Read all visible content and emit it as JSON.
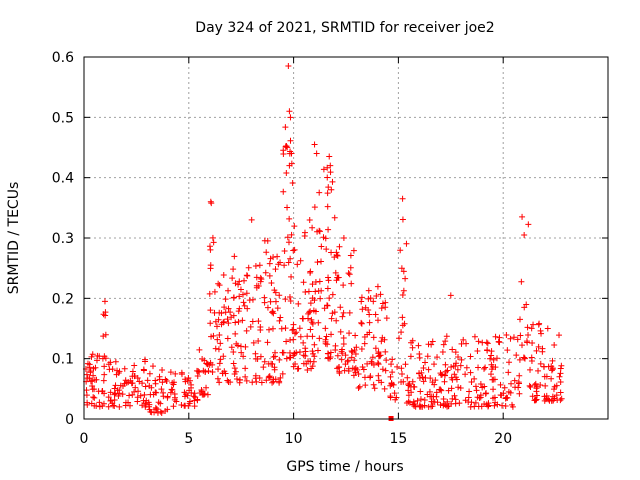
{
  "chart_data": {
    "type": "scatter",
    "title": "Day 324 of 2021, SRMTID for receiver joe2",
    "xlabel": "GPS time / hours",
    "ylabel": "SRMTID / TECUs",
    "xlim": [
      0,
      25
    ],
    "ylim": [
      0,
      0.6
    ],
    "xticks": [
      0,
      5,
      10,
      15,
      20
    ],
    "yticks": [
      0,
      0.1,
      0.2,
      0.3,
      0.4,
      0.5,
      0.6
    ],
    "grid": true,
    "marker": "+",
    "marker_color": "#ff0000",
    "gap_marker": {
      "x": 14.65,
      "y": 0.0
    },
    "series": [
      {
        "name": "SRMTID",
        "segments": [
          {
            "x0": 0.0,
            "x1": 1.0,
            "y_min": 0.02,
            "y_max": 0.11,
            "density": 45
          },
          {
            "x0": 0.9,
            "x1": 1.05,
            "y_min": 0.1,
            "y_max": 0.195,
            "density": 8
          },
          {
            "x0": 1.0,
            "x1": 3.0,
            "y_min": 0.02,
            "y_max": 0.1,
            "density": 70
          },
          {
            "x0": 3.0,
            "x1": 4.0,
            "y_min": 0.01,
            "y_max": 0.09,
            "density": 40
          },
          {
            "x0": 4.0,
            "x1": 5.5,
            "y_min": 0.02,
            "y_max": 0.08,
            "density": 45
          },
          {
            "x0": 5.5,
            "x1": 6.0,
            "y_min": 0.04,
            "y_max": 0.12,
            "density": 20
          },
          {
            "x0": 6.0,
            "x1": 7.0,
            "y_min": 0.06,
            "y_max": 0.26,
            "density": 50
          },
          {
            "x0": 6.0,
            "x1": 6.2,
            "y_min": 0.28,
            "y_max": 0.36,
            "density": 5
          },
          {
            "x0": 7.0,
            "x1": 8.5,
            "y_min": 0.06,
            "y_max": 0.27,
            "density": 75
          },
          {
            "x0": 8.5,
            "x1": 9.5,
            "y_min": 0.06,
            "y_max": 0.3,
            "density": 55
          },
          {
            "x0": 9.5,
            "x1": 10.0,
            "y_min": 0.1,
            "y_max": 0.45,
            "density": 35
          },
          {
            "x0": 9.6,
            "x1": 9.9,
            "y_min": 0.45,
            "y_max": 0.51,
            "density": 6
          },
          {
            "x0": 10.0,
            "x1": 11.0,
            "y_min": 0.08,
            "y_max": 0.33,
            "density": 60
          },
          {
            "x0": 11.0,
            "x1": 12.0,
            "y_min": 0.1,
            "y_max": 0.42,
            "density": 60
          },
          {
            "x0": 12.0,
            "x1": 13.0,
            "y_min": 0.07,
            "y_max": 0.3,
            "density": 55
          },
          {
            "x0": 13.0,
            "x1": 14.5,
            "y_min": 0.05,
            "y_max": 0.22,
            "density": 65
          },
          {
            "x0": 14.6,
            "x1": 15.0,
            "y_min": 0.03,
            "y_max": 0.1,
            "density": 15
          },
          {
            "x0": 15.0,
            "x1": 15.4,
            "y_min": 0.06,
            "y_max": 0.36,
            "density": 18
          },
          {
            "x0": 15.4,
            "x1": 17.0,
            "y_min": 0.02,
            "y_max": 0.13,
            "density": 70
          },
          {
            "x0": 17.0,
            "x1": 19.0,
            "y_min": 0.02,
            "y_max": 0.14,
            "density": 80
          },
          {
            "x0": 19.0,
            "x1": 20.8,
            "y_min": 0.02,
            "y_max": 0.14,
            "density": 70
          },
          {
            "x0": 20.8,
            "x1": 21.2,
            "y_min": 0.1,
            "y_max": 0.33,
            "density": 14
          },
          {
            "x0": 21.2,
            "x1": 22.8,
            "y_min": 0.03,
            "y_max": 0.16,
            "density": 70
          }
        ],
        "peaks": [
          {
            "x": 9.75,
            "y": 0.585
          },
          {
            "x": 9.8,
            "y": 0.51
          },
          {
            "x": 9.85,
            "y": 0.5
          },
          {
            "x": 9.9,
            "y": 0.44
          },
          {
            "x": 9.8,
            "y": 0.42
          },
          {
            "x": 11.0,
            "y": 0.455
          },
          {
            "x": 11.1,
            "y": 0.44
          },
          {
            "x": 11.7,
            "y": 0.435
          },
          {
            "x": 11.75,
            "y": 0.42
          },
          {
            "x": 15.2,
            "y": 0.365
          },
          {
            "x": 20.9,
            "y": 0.335
          },
          {
            "x": 6.05,
            "y": 0.36
          },
          {
            "x": 1.0,
            "y": 0.195
          },
          {
            "x": 8.0,
            "y": 0.33
          },
          {
            "x": 11.8,
            "y": 0.38
          },
          {
            "x": 17.5,
            "y": 0.205
          },
          {
            "x": 21.0,
            "y": 0.305
          },
          {
            "x": 12.4,
            "y": 0.3
          }
        ]
      }
    ]
  }
}
